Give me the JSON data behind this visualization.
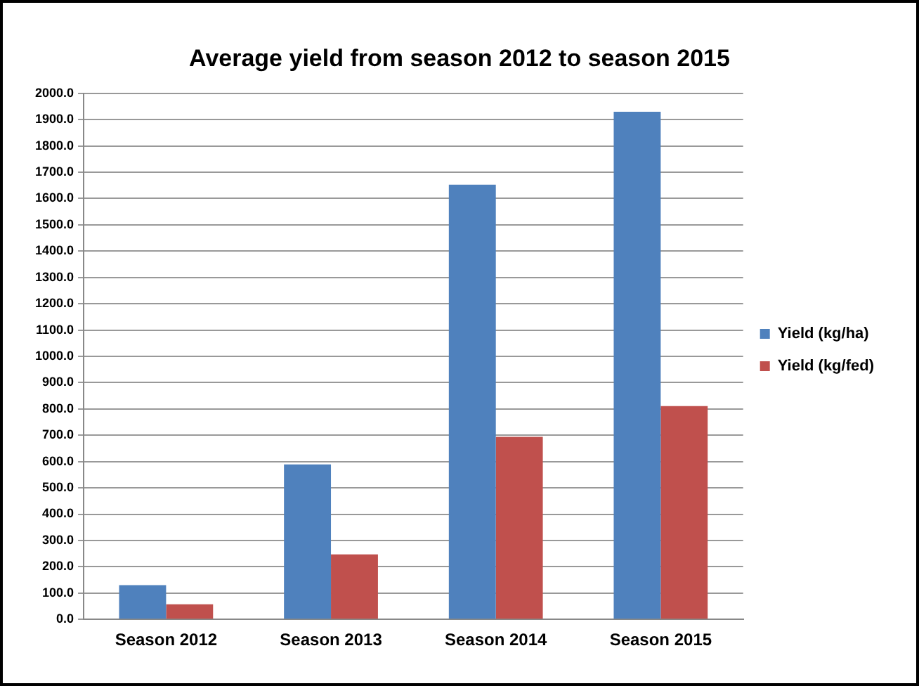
{
  "chart_data": {
    "type": "bar",
    "title": "Average yield from season 2012 to season 2015",
    "categories": [
      "Season 2012",
      "Season 2013",
      "Season 2014",
      "Season 2015"
    ],
    "series": [
      {
        "name": "Yield (kg/ha)",
        "color": "#4f81bd",
        "values": [
          130,
          589,
          1653,
          1930
        ]
      },
      {
        "name": "Yield (kg/fed)",
        "color": "#c0504d",
        "values": [
          57,
          247,
          694,
          811
        ]
      }
    ],
    "ylim": [
      0,
      2000
    ],
    "yticks": [
      {
        "value": 0,
        "label": "0.0"
      },
      {
        "value": 100,
        "label": "100.0"
      },
      {
        "value": 200,
        "label": "200.0"
      },
      {
        "value": 300,
        "label": "300.0"
      },
      {
        "value": 400,
        "label": "400.0"
      },
      {
        "value": 500,
        "label": "500.0"
      },
      {
        "value": 600,
        "label": "600.0"
      },
      {
        "value": 700,
        "label": "700.0"
      },
      {
        "value": 800,
        "label": "800.0"
      },
      {
        "value": 900,
        "label": "900.0"
      },
      {
        "value": 1000,
        "label": "1000.0"
      },
      {
        "value": 1100,
        "label": "1100.0"
      },
      {
        "value": 1200,
        "label": "1200.0"
      },
      {
        "value": 1300,
        "label": "1300.0"
      },
      {
        "value": 1400,
        "label": "1400.0"
      },
      {
        "value": 1500,
        "label": "1500.0"
      },
      {
        "value": 1600,
        "label": "1600.0"
      },
      {
        "value": 1700,
        "label": "1700.0"
      },
      {
        "value": 1800,
        "label": "1800.0"
      },
      {
        "value": 1900,
        "label": "1900.0"
      },
      {
        "value": 2000,
        "label": "2000.0"
      }
    ],
    "grid": "y",
    "legend": "right"
  }
}
